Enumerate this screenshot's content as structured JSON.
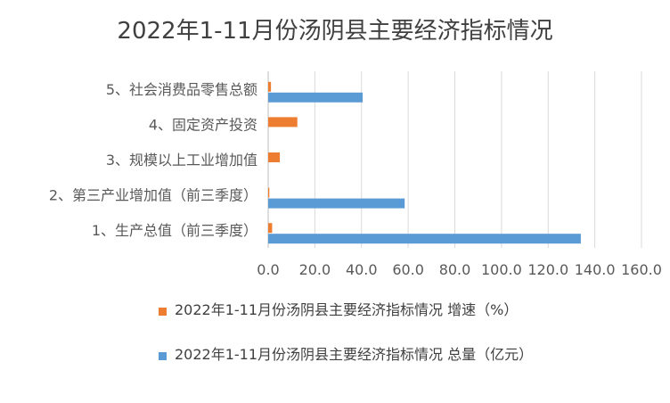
{
  "chart_data": {
    "type": "bar",
    "orientation": "horizontal",
    "title": "2022年1-11月份汤阴县主要经济指标情况",
    "categories": [
      "1、生产总值（前三季度）",
      "2、第三产业增加值（前三季度）",
      "3、规模以上工业增加值",
      "4、固定资产投资",
      "5、社会消费品零售总额"
    ],
    "series": [
      {
        "name": "2022年1-11月份汤阴县主要经济指标情况 增速（%）",
        "color": "#ED7D31",
        "values": [
          1.7,
          0.5,
          5.0,
          12.5,
          1.2
        ]
      },
      {
        "name": "2022年1-11月份汤阴县主要经济指标情况 总量（亿元）",
        "color": "#5B9BD5",
        "values": [
          134.0,
          58.5,
          null,
          null,
          40.5
        ]
      }
    ],
    "xlim": [
      0,
      160
    ],
    "xticks": [
      "0.0",
      "20.0",
      "40.0",
      "60.0",
      "80.0",
      "100.0",
      "120.0",
      "140.0",
      "160.0"
    ],
    "grid": true,
    "legend_position": "bottom"
  }
}
